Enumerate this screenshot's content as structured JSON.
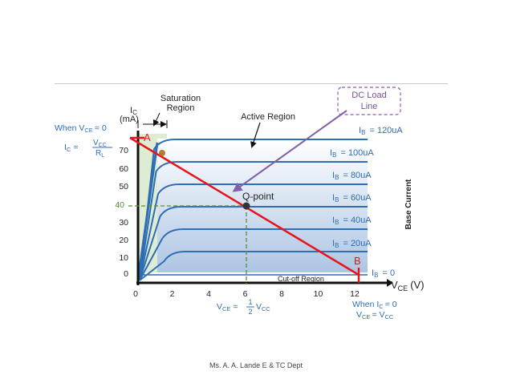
{
  "labels": {
    "saturation_line1": "Saturation",
    "saturation_line2": "Region",
    "active_region": "Active Region",
    "dc_load_line1": "DC Load",
    "dc_load_line2": "Line",
    "ic_axis_line1": "I",
    "ic_axis_sub": "C",
    "ic_axis_line2": "(mA)",
    "vce_axis_main": "V",
    "vce_axis_sub": "CE",
    "vce_axis_unit": "(V)",
    "base_current": "Base Current",
    "cutoff_region": "Cut-off Region",
    "q_point": "Q-point",
    "point_a": "A",
    "point_b": "B",
    "when_vce0_when": "When V",
    "when_vce0_sub": "CE",
    "when_vce0_eq": "= 0",
    "ic_eq_i": "I",
    "ic_eq_sub": "C",
    "ic_eq_eq": "=",
    "ic_eq_num_v": "V",
    "ic_eq_num_sub": "CC",
    "ic_eq_den_r": "R",
    "ic_eq_den_sub": "L",
    "vce_half_v": "V",
    "vce_half_sub": "CE",
    "vce_half_eq": "=",
    "vce_half_num": "1",
    "vce_half_den": "2",
    "vce_half_vcc": "V",
    "vce_half_vcc_sub": "CC",
    "when_ic0_when": "When I",
    "when_ic0_sub": "C",
    "when_ic0_eq": "= 0",
    "vce_vcc_v": "V",
    "vce_vcc_sub": "CE",
    "vce_vcc_eq": "= V",
    "vce_vcc_sub2": "CC"
  },
  "x_ticks": [
    "0",
    "2",
    "4",
    "6",
    "8",
    "10",
    "12"
  ],
  "y_ticks": [
    "0",
    "10",
    "20",
    "30",
    "40",
    "50",
    "60",
    "70"
  ],
  "curves": [
    {
      "prefix": "I",
      "sub": "B",
      "text": "= 120uA"
    },
    {
      "prefix": "I",
      "sub": "B",
      "text": "= 100uA"
    },
    {
      "prefix": "I",
      "sub": "B",
      "text": "= 80uA"
    },
    {
      "prefix": "I",
      "sub": "B",
      "text": "= 60uA"
    },
    {
      "prefix": "I",
      "sub": "B",
      "text": "= 40uA"
    },
    {
      "prefix": "I",
      "sub": "B",
      "text": "= 20uA"
    },
    {
      "prefix": "I",
      "sub": "B",
      "text": "= 0"
    }
  ],
  "footer": "Ms. A. A. Lande E & TC Dept",
  "colors": {
    "curve": "#2f6db5",
    "load_line": "#e8141b",
    "label_blue": "#2f6db5",
    "saturation_fill": "#dfecd4",
    "active_top": "#ffffff",
    "active_bottom": "#aac3e2",
    "callout_border": "#8e5ba8",
    "callout_text": "#7a4f9a",
    "dc_arrow": "#8060a8",
    "q_guide": "#5a8c3a",
    "q_dot": "#333333",
    "a_dot": "#b07a3a"
  }
}
